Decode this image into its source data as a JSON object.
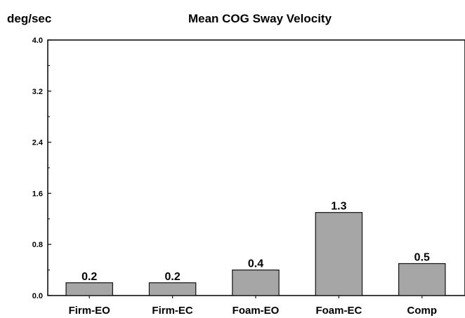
{
  "chart_data": {
    "type": "bar",
    "title": "Mean COG Sway Velocity",
    "ylabel": "deg/sec",
    "xlabel": "",
    "categories": [
      "Firm-EO",
      "Firm-EC",
      "Foam-EO",
      "Foam-EC",
      "Comp"
    ],
    "values": [
      0.2,
      0.2,
      0.4,
      1.3,
      0.5
    ],
    "data_labels": [
      "0.2",
      "0.2",
      "0.4",
      "1.3",
      "0.5"
    ],
    "ylim": [
      0,
      4.0
    ],
    "yticks": [
      "0.0",
      "0.8",
      "1.6",
      "2.4",
      "3.2",
      "4.0"
    ],
    "grid": false,
    "legend": "none",
    "colors": {
      "bar_fill": "#a6a6a6",
      "bar_stroke": "#111111",
      "axis": "#111111"
    }
  }
}
